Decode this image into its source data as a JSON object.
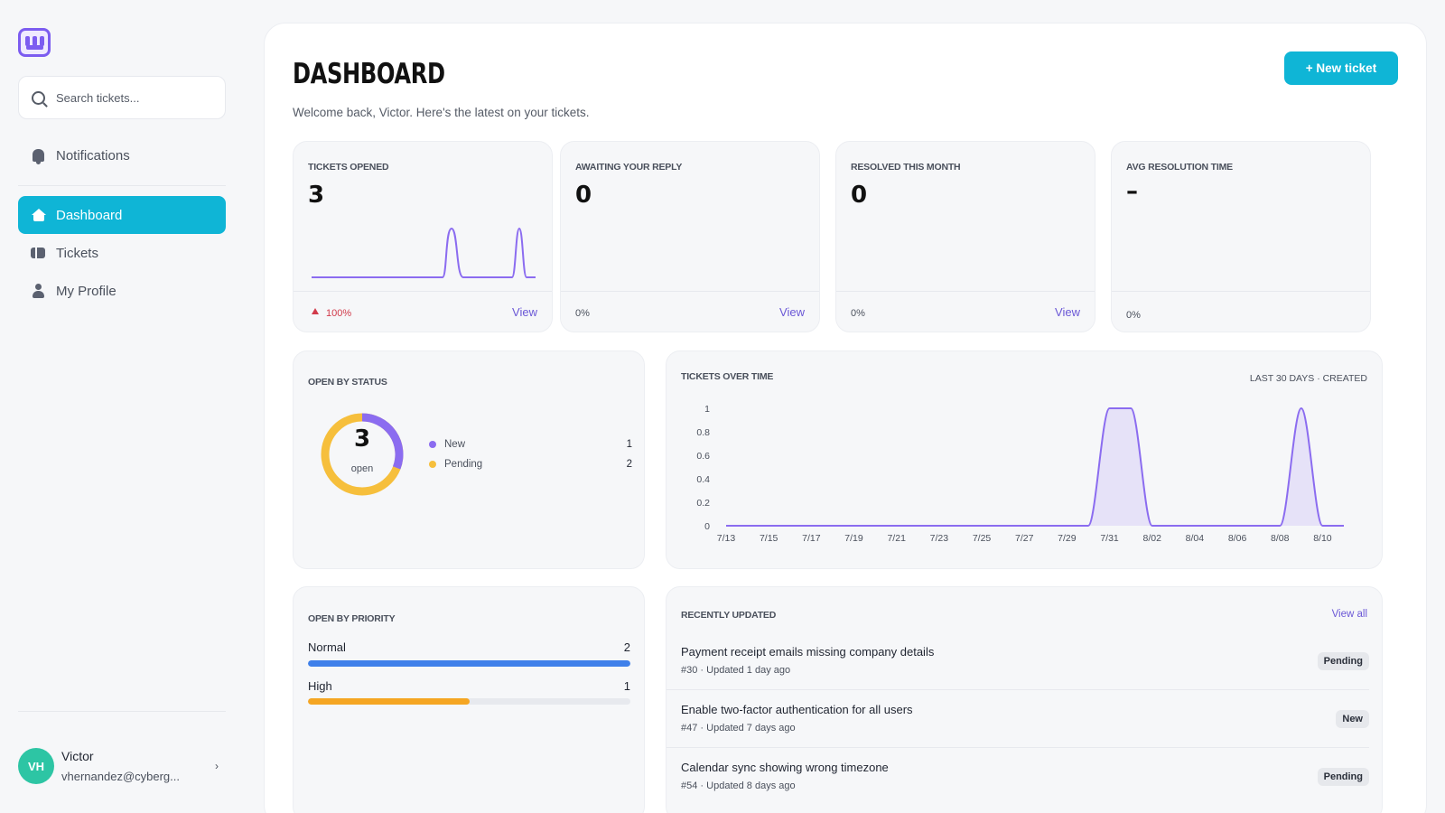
{
  "search": {
    "placeholder": "Search tickets..."
  },
  "nav": {
    "notifications": "Notifications",
    "dashboard": "Dashboard",
    "tickets": "Tickets",
    "profile": "My Profile"
  },
  "user": {
    "initials": "VH",
    "name": "Victor",
    "email": "vhernandez@cyberg...",
    "chevron": "›"
  },
  "header": {
    "title": "DASHBOARD",
    "subtitle": "Welcome back, Victor. Here's the latest on your tickets.",
    "new_ticket": "+   New ticket"
  },
  "kpis": [
    {
      "label": "TICKETS OPENED",
      "value": "3",
      "change": "100%",
      "view": "View",
      "trend_up": true
    },
    {
      "label": "AWAITING YOUR REPLY",
      "value": "0",
      "change": "0%",
      "view": "View"
    },
    {
      "label": "RESOLVED THIS MONTH",
      "value": "0",
      "change": "0%",
      "view": "View"
    },
    {
      "label": "AVG RESOLUTION TIME",
      "value": "–",
      "change": "0%"
    }
  ],
  "open_by_status": {
    "label": "OPEN BY STATUS",
    "total": "3",
    "total_label": "open",
    "items": [
      {
        "name": "New",
        "count": "1",
        "color": "#8b6cf0"
      },
      {
        "name": "Pending",
        "count": "2",
        "color": "#f6bf3c"
      }
    ]
  },
  "tickets_over_time": {
    "label": "TICKETS OVER TIME",
    "range": "LAST 30 DAYS · CREATED"
  },
  "chart_data": {
    "type": "area",
    "x": [
      "7/13",
      "7/14",
      "7/15",
      "7/16",
      "7/17",
      "7/18",
      "7/19",
      "7/20",
      "7/21",
      "7/22",
      "7/23",
      "7/24",
      "7/25",
      "7/26",
      "7/27",
      "7/28",
      "7/29",
      "7/30",
      "7/31",
      "8/01",
      "8/02",
      "8/03",
      "8/04",
      "8/05",
      "8/06",
      "8/07",
      "8/08",
      "8/09",
      "8/10",
      "8/11"
    ],
    "x_tick_labels": [
      "7/13",
      "7/15",
      "7/17",
      "7/19",
      "7/21",
      "7/23",
      "7/25",
      "7/27",
      "7/29",
      "7/31",
      "8/02",
      "8/04",
      "8/06",
      "8/08",
      "8/10"
    ],
    "series": [
      {
        "values": [
          0,
          0,
          0,
          0,
          0,
          0,
          0,
          0,
          0,
          0,
          0,
          0,
          0,
          0,
          0,
          0,
          0,
          0,
          1,
          1,
          0,
          0,
          0,
          0,
          0,
          0,
          0,
          1,
          0,
          0
        ]
      }
    ],
    "y_ticks": [
      "0",
      "0.2",
      "0.4",
      "0.6",
      "0.8",
      "1"
    ],
    "ylim": [
      0,
      1
    ],
    "grid": false,
    "color": "#8b6cf0"
  },
  "open_by_priority": {
    "label": "OPEN BY PRIORITY",
    "items": [
      {
        "name": "Normal",
        "count": "2",
        "fraction": 1.0,
        "color": "#3f80ea"
      },
      {
        "name": "High",
        "count": "1",
        "fraction": 0.5,
        "color": "#f5a623"
      }
    ]
  },
  "recently_updated": {
    "label": "RECENTLY UPDATED",
    "view_all": "View all",
    "items": [
      {
        "title": "Payment receipt emails missing company details",
        "id": "#30",
        "updated": "Updated 1 day ago",
        "status": "Pending"
      },
      {
        "title": "Enable two-factor authentication for all users",
        "id": "#47",
        "updated": "Updated 7 days ago",
        "status": "New"
      },
      {
        "title": "Calendar sync showing wrong timezone",
        "id": "#54",
        "updated": "Updated 8 days ago",
        "status": "Pending"
      }
    ]
  }
}
